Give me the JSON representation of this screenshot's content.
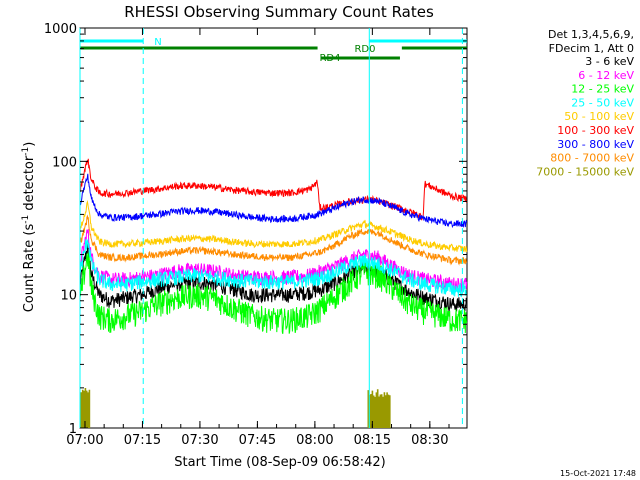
{
  "chart_data": {
    "type": "line",
    "title": "RHESSI Observing Summary Count Rates",
    "xlabel": "Start Time (08-Sep-09 06:58:42)",
    "ylabel_main": "Count Rate (s",
    "ylabel_sup1": "-1",
    "ylabel_mid": " detector",
    "ylabel_sup2": "-1",
    "ylabel_end": ")",
    "y_scale": "log",
    "ylim": [
      1,
      1000
    ],
    "xlim_minutes": [
      0,
      101
    ],
    "x_ticks": [
      {
        "label": "07:00",
        "minute": 1.3
      },
      {
        "label": "07:15",
        "minute": 16.3
      },
      {
        "label": "07:30",
        "minute": 31.3
      },
      {
        "label": "07:45",
        "minute": 46.3
      },
      {
        "label": "08:00",
        "minute": 61.3
      },
      {
        "label": "08:15",
        "minute": 76.3
      },
      {
        "label": "08:30",
        "minute": 91.3
      }
    ],
    "y_ticks": [
      {
        "label": "1",
        "value": 1
      },
      {
        "label": "10",
        "value": 10
      },
      {
        "label": "100",
        "value": 100
      },
      {
        "label": "1000",
        "value": 1000
      }
    ],
    "legend_header": [
      "Det 1,3,4,5,6,9,",
      "FDecim 1, Att 0"
    ],
    "legend_position": "right",
    "series": [
      {
        "name": "3 - 6 keV",
        "color": "#000000",
        "x": [
          0,
          1,
          2,
          3,
          5,
          8,
          12,
          16,
          20,
          25,
          30,
          35,
          40,
          45,
          50,
          55,
          60,
          63,
          66,
          70,
          74,
          78,
          82,
          86,
          90,
          94,
          97,
          101
        ],
        "y": [
          12,
          17,
          23,
          14,
          10,
          9,
          9.5,
          10,
          11,
          12,
          12.5,
          12,
          11,
          10,
          10,
          10,
          10.5,
          11,
          12,
          14,
          16,
          15,
          12.5,
          10.5,
          9.5,
          9,
          8.5,
          8.5
        ]
      },
      {
        "name": "6 - 12 keV",
        "color": "#ff00ff",
        "x": [
          0,
          1,
          2,
          3,
          5,
          8,
          12,
          16,
          20,
          25,
          30,
          35,
          40,
          45,
          50,
          55,
          60,
          63,
          66,
          70,
          74,
          78,
          82,
          86,
          90,
          94,
          97,
          101
        ],
        "y": [
          17,
          23,
          30,
          19,
          14,
          13,
          13,
          13.5,
          14,
          15,
          15.5,
          15,
          14,
          13.5,
          13.5,
          13.5,
          14,
          15,
          16,
          18,
          20,
          19,
          16,
          14,
          13,
          12.5,
          12,
          12
        ]
      },
      {
        "name": "12 - 25 keV",
        "color": "#00ff00",
        "x": [
          0,
          1,
          2,
          3,
          5,
          8,
          12,
          16,
          20,
          25,
          30,
          35,
          40,
          45,
          50,
          55,
          60,
          63,
          66,
          70,
          74,
          78,
          82,
          86,
          90,
          94,
          97,
          101
        ],
        "y": [
          9,
          14,
          20,
          11,
          7,
          6.5,
          7,
          7.5,
          8.5,
          9.5,
          10,
          9.5,
          8,
          7,
          6.5,
          6.5,
          7,
          8,
          9.5,
          12,
          15,
          14,
          11,
          8.5,
          7.5,
          7,
          6.5,
          6.5
        ]
      },
      {
        "name": "25 - 50 keV",
        "color": "#00ffff",
        "x": [
          0,
          1,
          2,
          3,
          5,
          8,
          12,
          16,
          20,
          25,
          30,
          35,
          40,
          45,
          50,
          55,
          60,
          63,
          66,
          70,
          74,
          78,
          82,
          86,
          90,
          94,
          97,
          101
        ],
        "y": [
          15,
          20,
          27,
          17,
          13,
          12,
          12,
          12.5,
          13,
          13.5,
          14,
          13.5,
          13,
          12.5,
          12.5,
          12.5,
          13,
          13.5,
          14.5,
          16.5,
          18,
          17,
          15,
          13,
          12,
          11.5,
          11,
          11
        ]
      },
      {
        "name": "50 - 100 keV",
        "color": "#ffcc00",
        "x": [
          0,
          1,
          2,
          3,
          5,
          8,
          12,
          16,
          20,
          25,
          30,
          35,
          40,
          45,
          50,
          55,
          60,
          63,
          66,
          70,
          74,
          78,
          82,
          86,
          90,
          94,
          97,
          101
        ],
        "y": [
          30,
          38,
          48,
          32,
          25,
          24,
          24,
          24.5,
          25,
          26,
          26.5,
          26,
          25,
          24,
          24,
          24,
          25,
          26,
          28,
          31,
          34,
          32,
          29,
          26,
          24,
          23,
          22.5,
          22
        ]
      },
      {
        "name": "100 - 300 keV",
        "color": "#ff0000",
        "x": [
          0,
          1,
          2,
          3,
          5,
          8,
          12,
          16,
          20,
          25,
          30,
          35,
          40,
          45,
          50,
          55,
          60,
          62,
          62.5,
          64,
          68,
          72,
          76,
          80,
          84,
          88,
          89.5,
          90,
          94,
          97,
          101
        ],
        "y": [
          60,
          80,
          105,
          72,
          58,
          57,
          58,
          60,
          62,
          65,
          66,
          64,
          61,
          59,
          58,
          58,
          62,
          70,
          45,
          45,
          48,
          51,
          52,
          48,
          44,
          40,
          38,
          68,
          60,
          55,
          52
        ]
      },
      {
        "name": "300 - 800 keV",
        "color": "#0000ff",
        "x": [
          0,
          1,
          2,
          3,
          5,
          8,
          12,
          16,
          20,
          25,
          30,
          35,
          40,
          45,
          50,
          55,
          60,
          63,
          66,
          70,
          74,
          78,
          82,
          86,
          90,
          94,
          97,
          101
        ],
        "y": [
          48,
          62,
          78,
          52,
          40,
          38,
          38,
          39,
          40,
          42,
          43,
          42,
          40,
          38,
          37,
          37,
          39,
          41,
          44,
          49,
          52,
          50,
          45,
          40,
          37,
          35,
          34,
          34
        ]
      },
      {
        "name": "800 - 7000 keV",
        "color": "#ff8c00",
        "x": [
          0,
          1,
          2,
          3,
          5,
          8,
          12,
          16,
          20,
          25,
          30,
          35,
          40,
          45,
          50,
          55,
          60,
          63,
          66,
          70,
          74,
          78,
          82,
          86,
          90,
          94,
          97,
          101
        ],
        "y": [
          24,
          30,
          38,
          26,
          20,
          19,
          19,
          19.5,
          20,
          21,
          21.5,
          21,
          20,
          19.5,
          19,
          19,
          20,
          21,
          23,
          27,
          30,
          29,
          25,
          22,
          20,
          19,
          18,
          18
        ]
      },
      {
        "name": "7000 - 15000 keV",
        "color": "#999900",
        "x": [
          0,
          1,
          2,
          3,
          5,
          8,
          12,
          16,
          20,
          25,
          30,
          35,
          40,
          45,
          50,
          55,
          60,
          63,
          66,
          70,
          74,
          78,
          82,
          86,
          90,
          94,
          97,
          101
        ],
        "y": [
          1,
          2,
          2,
          1,
          1,
          1,
          1,
          1,
          1,
          1,
          1,
          1,
          1,
          1,
          1,
          1,
          1,
          1,
          1,
          1,
          1,
          2,
          1,
          1,
          1,
          1,
          1,
          1
        ]
      }
    ],
    "annotations": [
      {
        "text": "N",
        "color": "#00ffff"
      },
      {
        "text": "RD0",
        "color": "#008000"
      },
      {
        "text": "RD4",
        "color": "#008000"
      }
    ],
    "flag_bars": [
      {
        "label": "N",
        "color": "#00ffff",
        "segments": [
          [
            0,
            16.5
          ],
          [
            75.5,
            101
          ]
        ],
        "level": 830
      },
      {
        "label": "RD0",
        "color": "#008000",
        "segments": [
          [
            0,
            62
          ],
          [
            84,
            101
          ]
        ],
        "level": 650
      },
      {
        "label": "RD4",
        "color": "#008000",
        "segments": [
          [
            63,
            83.5
          ]
        ],
        "level": 510
      }
    ],
    "vlines": [
      {
        "minute": 0,
        "color": "#00ffff",
        "style": "solid"
      },
      {
        "minute": 16.5,
        "color": "#00ffff",
        "style": "dashed"
      },
      {
        "minute": 75.5,
        "color": "#00ffff",
        "style": "solid"
      },
      {
        "minute": 99.8,
        "color": "#00ffff",
        "style": "dashed"
      }
    ],
    "footer_date": "15-Oct-2021 17:48"
  }
}
